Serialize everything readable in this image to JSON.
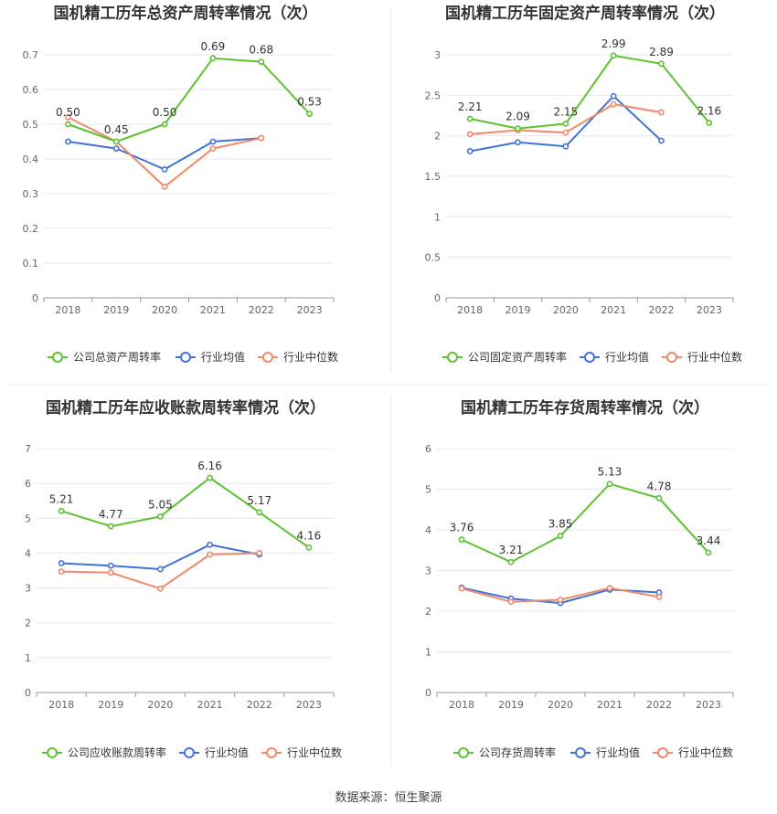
{
  "footer": {
    "source": "数据来源：恒生聚源"
  },
  "colors": {
    "company": "#5dc232",
    "avg": "#3f73d6",
    "median": "#f0896a",
    "grid": "#e8e8ee",
    "axis": "#666666",
    "label": "#333333"
  },
  "chart_data": [
    {
      "type": "line",
      "title": "国机精工历年总资产周转率情况（次）",
      "categories": [
        "2018",
        "2019",
        "2020",
        "2021",
        "2022",
        "2023"
      ],
      "yticks": [
        "0",
        "0.1",
        "0.2",
        "0.3",
        "0.4",
        "0.5",
        "0.6",
        "0.7"
      ],
      "ylim": [
        0,
        0.7
      ],
      "series": [
        {
          "name": "公司总资产周转率",
          "values": [
            0.5,
            0.45,
            0.5,
            0.69,
            0.68,
            0.53
          ],
          "labels": [
            "0.50",
            "0.45",
            "0.50",
            "0.69",
            "0.68",
            "0.53"
          ]
        },
        {
          "name": "行业均值",
          "values": [
            0.45,
            0.43,
            0.37,
            0.45,
            0.46,
            null
          ]
        },
        {
          "name": "行业中位数",
          "values": [
            0.52,
            0.45,
            0.32,
            0.43,
            0.46,
            null
          ]
        }
      ],
      "legend": "bottom"
    },
    {
      "type": "line",
      "title": "国机精工历年固定资产周转率情况（次）",
      "categories": [
        "2018",
        "2019",
        "2020",
        "2021",
        "2022",
        "2023"
      ],
      "yticks": [
        "0",
        "0.5",
        "1",
        "1.5",
        "2",
        "2.5",
        "3"
      ],
      "ylim": [
        0,
        3
      ],
      "series": [
        {
          "name": "公司固定资产周转率",
          "values": [
            2.21,
            2.09,
            2.15,
            2.99,
            2.89,
            2.16
          ],
          "labels": [
            "2.21",
            "2.09",
            "2.15",
            "2.99",
            "2.89",
            "2.16"
          ]
        },
        {
          "name": "行业均值",
          "values": [
            1.81,
            1.92,
            1.87,
            2.49,
            1.94,
            null
          ]
        },
        {
          "name": "行业中位数",
          "values": [
            2.02,
            2.07,
            2.04,
            2.39,
            2.29,
            null
          ]
        }
      ],
      "legend": "bottom"
    },
    {
      "type": "line",
      "title": "国机精工历年应收账款周转率情况（次）",
      "categories": [
        "2018",
        "2019",
        "2020",
        "2021",
        "2022",
        "2023"
      ],
      "yticks": [
        "0",
        "1",
        "2",
        "3",
        "4",
        "5",
        "6",
        "7"
      ],
      "ylim": [
        0,
        7
      ],
      "series": [
        {
          "name": "公司应收账款周转率",
          "values": [
            5.21,
            4.77,
            5.05,
            6.16,
            5.17,
            4.16
          ],
          "labels": [
            "5.21",
            "4.77",
            "5.05",
            "6.16",
            "5.17",
            "4.16"
          ]
        },
        {
          "name": "行业均值",
          "values": [
            3.71,
            3.64,
            3.54,
            4.24,
            3.96,
            null
          ]
        },
        {
          "name": "行业中位数",
          "values": [
            3.47,
            3.44,
            2.98,
            3.96,
            4.0,
            null
          ]
        }
      ],
      "legend": "bottom"
    },
    {
      "type": "line",
      "title": "国机精工历年存货周转率情况（次）",
      "categories": [
        "2018",
        "2019",
        "2020",
        "2021",
        "2022",
        "2023"
      ],
      "yticks": [
        "0",
        "1",
        "2",
        "3",
        "4",
        "5",
        "6"
      ],
      "ylim": [
        0,
        6
      ],
      "series": [
        {
          "name": "公司存货周转率",
          "values": [
            3.76,
            3.21,
            3.85,
            5.13,
            4.78,
            3.44
          ],
          "labels": [
            "3.76",
            "3.21",
            "3.85",
            "5.13",
            "4.78",
            "3.44"
          ]
        },
        {
          "name": "行业均值",
          "values": [
            2.58,
            2.31,
            2.2,
            2.53,
            2.46,
            null
          ]
        },
        {
          "name": "行业中位数",
          "values": [
            2.56,
            2.23,
            2.28,
            2.57,
            2.35,
            null
          ]
        }
      ],
      "legend": "bottom"
    }
  ]
}
